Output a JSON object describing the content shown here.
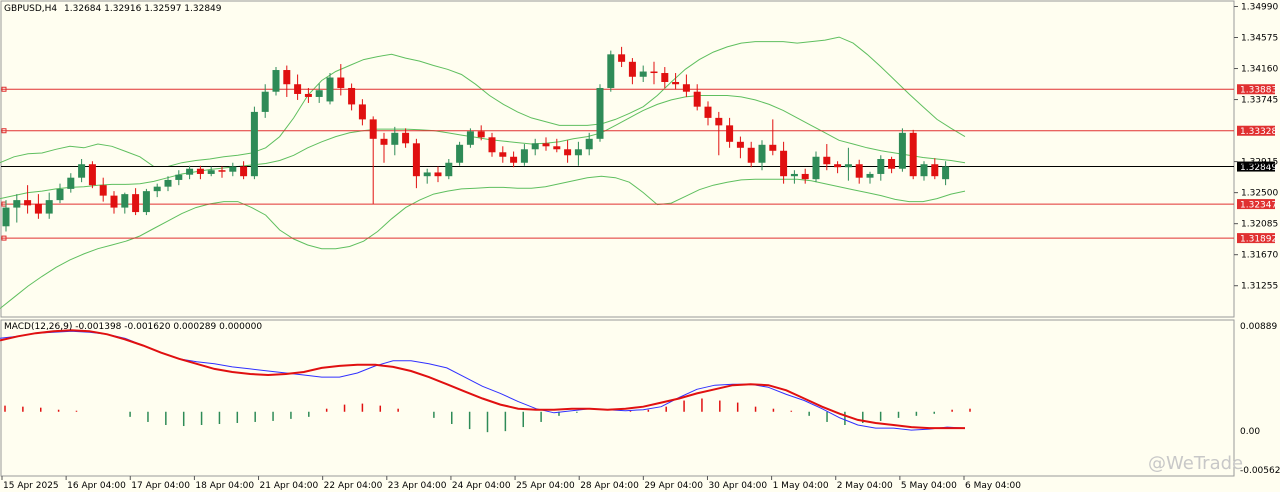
{
  "header": {
    "symbol_timeframe": "GBPUSD,H4",
    "ohlc": "1.32684 1.32916 1.32597 1.32849"
  },
  "macd": {
    "label": "MACD(12,26,9) -0.001398 -0.001620 0.000289 0.000000",
    "axis_top": "0.00889",
    "axis_zero": "0.00",
    "axis_bottom": "-0.005629"
  },
  "watermark": "@WeTrade",
  "colors": {
    "background": "#fffef0",
    "bull": "#2e8b57",
    "bear": "#e01010",
    "band": "#5fbf5f",
    "hline": "#e03030",
    "price_line": "#000000",
    "macd_line": "#3030ff",
    "signal_line": "#e01010"
  },
  "chart_data": [
    {
      "type": "candlestick",
      "title": "GBPUSD,H4",
      "ylim": [
        1.3085,
        1.3505
      ],
      "y_ticks": [
        "1.34990",
        "1.34575",
        "1.34160",
        "1.33745",
        "1.32915",
        "1.32500",
        "1.32085",
        "1.31670",
        "1.31255"
      ],
      "x_ticks": [
        "15 Apr 2025",
        "16 Apr 04:00",
        "17 Apr 04:00",
        "18 Apr 04:00",
        "21 Apr 04:00",
        "22 Apr 04:00",
        "23 Apr 04:00",
        "24 Apr 04:00",
        "25 Apr 04:00",
        "28 Apr 04:00",
        "29 Apr 04:00",
        "30 Apr 04:00",
        "1 May 04:00",
        "2 May 04:00",
        "5 May 04:00",
        "6 May 04:00"
      ],
      "current_price": "1.32849",
      "horizontal_levels": [
        "1.33883",
        "1.33328",
        "1.32347",
        "1.31892"
      ],
      "bollinger": {
        "upper": [
          1.329,
          1.3298,
          1.3302,
          1.3303,
          1.3308,
          1.3312,
          1.331,
          1.3315,
          1.3312,
          1.3305,
          1.3298,
          1.3285,
          1.3285,
          1.329,
          1.3293,
          1.3295,
          1.3298,
          1.33,
          1.3303,
          1.331,
          1.3325,
          1.335,
          1.338,
          1.34,
          1.3412,
          1.342,
          1.3428,
          1.3432,
          1.3435,
          1.343,
          1.3426,
          1.342,
          1.3415,
          1.3408,
          1.3395,
          1.338,
          1.3368,
          1.3358,
          1.335,
          1.3345,
          1.334,
          1.334,
          1.334,
          1.3342,
          1.3348,
          1.3356,
          1.3365,
          1.338,
          1.3398,
          1.3415,
          1.3428,
          1.3438,
          1.3445,
          1.345,
          1.3452,
          1.3452,
          1.3452,
          1.345,
          1.3452,
          1.3454,
          1.3458,
          1.345,
          1.3435,
          1.3418,
          1.34,
          1.3382,
          1.3365,
          1.3348,
          1.3336,
          1.3325
        ],
        "middle": [
          1.3242,
          1.3246,
          1.325,
          1.3252,
          1.3255,
          1.3257,
          1.3258,
          1.326,
          1.3261,
          1.3261,
          1.3262,
          1.3265,
          1.327,
          1.3275,
          1.3278,
          1.3281,
          1.3283,
          1.3285,
          1.3287,
          1.3289,
          1.3293,
          1.33,
          1.331,
          1.3318,
          1.3325,
          1.333,
          1.3333,
          1.3335,
          1.3335,
          1.3335,
          1.3334,
          1.3333,
          1.333,
          1.3327,
          1.3324,
          1.3321,
          1.3319,
          1.3317,
          1.3315,
          1.3316,
          1.3318,
          1.3322,
          1.3325,
          1.333,
          1.334,
          1.335,
          1.336,
          1.3368,
          1.3374,
          1.3378,
          1.338,
          1.338,
          1.338,
          1.3378,
          1.3374,
          1.3368,
          1.336,
          1.335,
          1.334,
          1.333,
          1.332,
          1.3315,
          1.331,
          1.3306,
          1.3303,
          1.33,
          1.3297,
          1.3295,
          1.3293,
          1.329
        ],
        "lower": [
          1.3095,
          1.311,
          1.3125,
          1.3138,
          1.315,
          1.316,
          1.3168,
          1.3175,
          1.318,
          1.3185,
          1.3192,
          1.3202,
          1.3212,
          1.3222,
          1.323,
          1.3235,
          1.3238,
          1.3238,
          1.323,
          1.322,
          1.32,
          1.3188,
          1.318,
          1.3175,
          1.3175,
          1.3178,
          1.3185,
          1.3198,
          1.3215,
          1.323,
          1.324,
          1.3248,
          1.3252,
          1.3255,
          1.3256,
          1.3257,
          1.3257,
          1.3256,
          1.3256,
          1.3258,
          1.3262,
          1.3266,
          1.327,
          1.3272,
          1.327,
          1.3264,
          1.325,
          1.3234,
          1.3236,
          1.3245,
          1.3254,
          1.326,
          1.3264,
          1.3267,
          1.3268,
          1.3268,
          1.3268,
          1.3268,
          1.3266,
          1.3262,
          1.3258,
          1.3254,
          1.325,
          1.3246,
          1.3241,
          1.3238,
          1.3238,
          1.3242,
          1.3248,
          1.3252
        ]
      },
      "candles": [
        {
          "o": 1.3205,
          "h": 1.324,
          "l": 1.3198,
          "c": 1.323
        },
        {
          "o": 1.323,
          "h": 1.3248,
          "l": 1.321,
          "c": 1.324
        },
        {
          "o": 1.324,
          "h": 1.326,
          "l": 1.3222,
          "c": 1.3233
        },
        {
          "o": 1.3235,
          "h": 1.3248,
          "l": 1.3215,
          "c": 1.3222
        },
        {
          "o": 1.3222,
          "h": 1.325,
          "l": 1.3215,
          "c": 1.324
        },
        {
          "o": 1.324,
          "h": 1.3262,
          "l": 1.3236,
          "c": 1.3255
        },
        {
          "o": 1.3255,
          "h": 1.3276,
          "l": 1.325,
          "c": 1.327
        },
        {
          "o": 1.327,
          "h": 1.3295,
          "l": 1.3264,
          "c": 1.3288
        },
        {
          "o": 1.3288,
          "h": 1.3292,
          "l": 1.3256,
          "c": 1.326
        },
        {
          "o": 1.326,
          "h": 1.327,
          "l": 1.3238,
          "c": 1.3246
        },
        {
          "o": 1.3246,
          "h": 1.3252,
          "l": 1.3222,
          "c": 1.323
        },
        {
          "o": 1.323,
          "h": 1.325,
          "l": 1.3222,
          "c": 1.3248
        },
        {
          "o": 1.3248,
          "h": 1.3256,
          "l": 1.322,
          "c": 1.3224
        },
        {
          "o": 1.3224,
          "h": 1.3255,
          "l": 1.322,
          "c": 1.3252
        },
        {
          "o": 1.3252,
          "h": 1.3262,
          "l": 1.3244,
          "c": 1.3258
        },
        {
          "o": 1.3258,
          "h": 1.3272,
          "l": 1.3252,
          "c": 1.3267
        },
        {
          "o": 1.3267,
          "h": 1.328,
          "l": 1.326,
          "c": 1.3274
        },
        {
          "o": 1.3274,
          "h": 1.3286,
          "l": 1.3268,
          "c": 1.3282
        },
        {
          "o": 1.3282,
          "h": 1.3286,
          "l": 1.3268,
          "c": 1.3275
        },
        {
          "o": 1.3275,
          "h": 1.3285,
          "l": 1.3272,
          "c": 1.328
        },
        {
          "o": 1.328,
          "h": 1.3285,
          "l": 1.327,
          "c": 1.3278
        },
        {
          "o": 1.3278,
          "h": 1.329,
          "l": 1.3272,
          "c": 1.3285
        },
        {
          "o": 1.3285,
          "h": 1.3292,
          "l": 1.3268,
          "c": 1.3272
        },
        {
          "o": 1.3272,
          "h": 1.3365,
          "l": 1.3268,
          "c": 1.3358
        },
        {
          "o": 1.3358,
          "h": 1.3395,
          "l": 1.335,
          "c": 1.3385
        },
        {
          "o": 1.3385,
          "h": 1.3418,
          "l": 1.338,
          "c": 1.3414
        },
        {
          "o": 1.3414,
          "h": 1.342,
          "l": 1.3378,
          "c": 1.3395
        },
        {
          "o": 1.3395,
          "h": 1.3408,
          "l": 1.3374,
          "c": 1.3382
        },
        {
          "o": 1.3382,
          "h": 1.339,
          "l": 1.337,
          "c": 1.3378
        },
        {
          "o": 1.3378,
          "h": 1.3396,
          "l": 1.337,
          "c": 1.3387
        },
        {
          "o": 1.3372,
          "h": 1.341,
          "l": 1.3368,
          "c": 1.3404
        },
        {
          "o": 1.3404,
          "h": 1.3422,
          "l": 1.338,
          "c": 1.339
        },
        {
          "o": 1.339,
          "h": 1.3396,
          "l": 1.336,
          "c": 1.3368
        },
        {
          "o": 1.3368,
          "h": 1.3375,
          "l": 1.334,
          "c": 1.3348
        },
        {
          "o": 1.3348,
          "h": 1.3352,
          "l": 1.3235,
          "c": 1.3322
        },
        {
          "o": 1.3322,
          "h": 1.333,
          "l": 1.329,
          "c": 1.3314
        },
        {
          "o": 1.3314,
          "h": 1.3338,
          "l": 1.33,
          "c": 1.333
        },
        {
          "o": 1.333,
          "h": 1.3336,
          "l": 1.331,
          "c": 1.3316
        },
        {
          "o": 1.3316,
          "h": 1.3322,
          "l": 1.3256,
          "c": 1.3272
        },
        {
          "o": 1.3272,
          "h": 1.3282,
          "l": 1.3262,
          "c": 1.3277
        },
        {
          "o": 1.3277,
          "h": 1.3285,
          "l": 1.3264,
          "c": 1.3272
        },
        {
          "o": 1.3272,
          "h": 1.3295,
          "l": 1.3268,
          "c": 1.329
        },
        {
          "o": 1.329,
          "h": 1.3318,
          "l": 1.3286,
          "c": 1.3314
        },
        {
          "o": 1.3314,
          "h": 1.3336,
          "l": 1.331,
          "c": 1.3332
        },
        {
          "o": 1.3332,
          "h": 1.334,
          "l": 1.332,
          "c": 1.3324
        },
        {
          "o": 1.3324,
          "h": 1.333,
          "l": 1.3298,
          "c": 1.3304
        },
        {
          "o": 1.3304,
          "h": 1.3312,
          "l": 1.329,
          "c": 1.3298
        },
        {
          "o": 1.3298,
          "h": 1.3305,
          "l": 1.3284,
          "c": 1.329
        },
        {
          "o": 1.329,
          "h": 1.3315,
          "l": 1.3286,
          "c": 1.3308
        },
        {
          "o": 1.3308,
          "h": 1.3322,
          "l": 1.33,
          "c": 1.3316
        },
        {
          "o": 1.3316,
          "h": 1.3324,
          "l": 1.3306,
          "c": 1.3312
        },
        {
          "o": 1.3312,
          "h": 1.3322,
          "l": 1.3304,
          "c": 1.3308
        },
        {
          "o": 1.3308,
          "h": 1.332,
          "l": 1.329,
          "c": 1.33
        },
        {
          "o": 1.33,
          "h": 1.3318,
          "l": 1.3286,
          "c": 1.3308
        },
        {
          "o": 1.3308,
          "h": 1.333,
          "l": 1.33,
          "c": 1.3322
        },
        {
          "o": 1.3322,
          "h": 1.3395,
          "l": 1.3318,
          "c": 1.339
        },
        {
          "o": 1.339,
          "h": 1.344,
          "l": 1.3385,
          "c": 1.3435
        },
        {
          "o": 1.3435,
          "h": 1.3445,
          "l": 1.3418,
          "c": 1.3425
        },
        {
          "o": 1.3425,
          "h": 1.343,
          "l": 1.3395,
          "c": 1.3405
        },
        {
          "o": 1.3405,
          "h": 1.342,
          "l": 1.3398,
          "c": 1.3412
        },
        {
          "o": 1.3412,
          "h": 1.3425,
          "l": 1.3395,
          "c": 1.341
        },
        {
          "o": 1.341,
          "h": 1.3418,
          "l": 1.339,
          "c": 1.3398
        },
        {
          "o": 1.3398,
          "h": 1.341,
          "l": 1.3388,
          "c": 1.3395
        },
        {
          "o": 1.3395,
          "h": 1.3408,
          "l": 1.3378,
          "c": 1.3385
        },
        {
          "o": 1.3385,
          "h": 1.3395,
          "l": 1.336,
          "c": 1.3365
        },
        {
          "o": 1.3365,
          "h": 1.3372,
          "l": 1.334,
          "c": 1.335
        },
        {
          "o": 1.335,
          "h": 1.3358,
          "l": 1.33,
          "c": 1.334
        },
        {
          "o": 1.334,
          "h": 1.335,
          "l": 1.331,
          "c": 1.3318
        },
        {
          "o": 1.3318,
          "h": 1.3325,
          "l": 1.3296,
          "c": 1.331
        },
        {
          "o": 1.331,
          "h": 1.3318,
          "l": 1.3284,
          "c": 1.329
        },
        {
          "o": 1.329,
          "h": 1.332,
          "l": 1.328,
          "c": 1.3314
        },
        {
          "o": 1.3314,
          "h": 1.3348,
          "l": 1.33,
          "c": 1.3306
        },
        {
          "o": 1.3306,
          "h": 1.3318,
          "l": 1.3262,
          "c": 1.3272
        },
        {
          "o": 1.3272,
          "h": 1.328,
          "l": 1.3262,
          "c": 1.3275
        },
        {
          "o": 1.3275,
          "h": 1.3282,
          "l": 1.3262,
          "c": 1.3268
        },
        {
          "o": 1.3268,
          "h": 1.3305,
          "l": 1.3264,
          "c": 1.3298
        },
        {
          "o": 1.3298,
          "h": 1.3315,
          "l": 1.328,
          "c": 1.3288
        },
        {
          "o": 1.3288,
          "h": 1.3292,
          "l": 1.3276,
          "c": 1.3284
        },
        {
          "o": 1.3284,
          "h": 1.331,
          "l": 1.3266,
          "c": 1.3288
        },
        {
          "o": 1.3288,
          "h": 1.3294,
          "l": 1.3262,
          "c": 1.327
        },
        {
          "o": 1.327,
          "h": 1.3278,
          "l": 1.3262,
          "c": 1.3275
        },
        {
          "o": 1.3275,
          "h": 1.33,
          "l": 1.3266,
          "c": 1.3295
        },
        {
          "o": 1.3295,
          "h": 1.3298,
          "l": 1.3276,
          "c": 1.3282
        },
        {
          "o": 1.3282,
          "h": 1.3336,
          "l": 1.3278,
          "c": 1.333
        },
        {
          "o": 1.333,
          "h": 1.3334,
          "l": 1.3268,
          "c": 1.3272
        },
        {
          "o": 1.3272,
          "h": 1.3292,
          "l": 1.3266,
          "c": 1.3288
        },
        {
          "o": 1.3288,
          "h": 1.3296,
          "l": 1.3268,
          "c": 1.3272
        },
        {
          "o": 1.3268,
          "h": 1.3292,
          "l": 1.326,
          "c": 1.3285
        }
      ]
    },
    {
      "type": "line",
      "title": "MACD(12,26,9) -0.001398 -0.001620 0.000289 0.000000",
      "ylim": [
        -0.0063,
        0.0089
      ],
      "series": [
        {
          "name": "MACD",
          "values": [
            0.0072,
            0.0074,
            0.0077,
            0.0078,
            0.0079,
            0.0078,
            0.0076,
            0.0072,
            0.0065,
            0.0058,
            0.0052,
            0.0049,
            0.0047,
            0.0044,
            0.0042,
            0.004,
            0.0038,
            0.0036,
            0.0034,
            0.0034,
            0.0038,
            0.0045,
            0.005,
            0.005,
            0.0047,
            0.0043,
            0.0034,
            0.0025,
            0.0018,
            0.001,
            0.0003,
            -0.0001,
            0.0001,
            0.0003,
            0.0002,
            0.0001,
            0.0002,
            0.0005,
            0.0014,
            0.0022,
            0.0026,
            0.0027,
            0.0027,
            0.0024,
            0.0017,
            0.0011,
            0.0003,
            -0.0006,
            -0.0013,
            -0.0016,
            -0.0016,
            -0.0018,
            -0.0017,
            -0.0015,
            -0.0016
          ]
        },
        {
          "name": "Signal",
          "values": [
            0.007,
            0.0074,
            0.0077,
            0.0079,
            0.008,
            0.0079,
            0.0076,
            0.0071,
            0.0065,
            0.0058,
            0.0052,
            0.0047,
            0.0042,
            0.0039,
            0.0037,
            0.0036,
            0.0037,
            0.0039,
            0.0043,
            0.0045,
            0.0046,
            0.0046,
            0.0044,
            0.004,
            0.0034,
            0.0027,
            0.002,
            0.0013,
            0.0007,
            0.0003,
            0.0002,
            0.0002,
            0.0003,
            0.0003,
            0.0002,
            0.0003,
            0.0005,
            0.0009,
            0.0013,
            0.0018,
            0.0022,
            0.0026,
            0.0027,
            0.0026,
            0.0021,
            0.0013,
            0.0005,
            -0.0002,
            -0.0008,
            -0.0011,
            -0.0013,
            -0.0015,
            -0.0016,
            -0.0016,
            -0.0016
          ]
        },
        {
          "name": "Histogram",
          "values": [
            0.0006,
            0.0005,
            0.0004,
            0.0002,
            0.0001,
            0.0,
            0.0,
            -0.0005,
            -0.001,
            -0.0013,
            -0.0014,
            -0.0013,
            -0.0012,
            -0.0011,
            -0.001,
            -0.0009,
            -0.0007,
            -0.0005,
            0.0003,
            0.0007,
            0.0008,
            0.0006,
            0.0003,
            0.0,
            -0.0006,
            -0.0012,
            -0.0017,
            -0.002,
            -0.0019,
            -0.0015,
            -0.001,
            -0.0004,
            -0.0001,
            0.0,
            0.0,
            0.0001,
            0.0002,
            0.0005,
            0.0011,
            0.0013,
            0.0011,
            0.0009,
            0.0005,
            0.0003,
            0.0001,
            -0.0004,
            -0.001,
            -0.0013,
            -0.0011,
            -0.0009,
            -0.0006,
            -0.0004,
            -0.0002,
            0.0002,
            0.0003
          ]
        }
      ]
    }
  ]
}
